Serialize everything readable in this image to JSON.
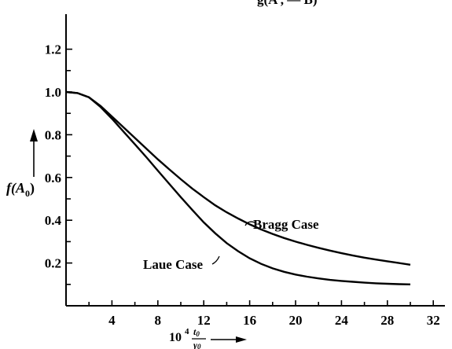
{
  "chart_data": {
    "type": "line",
    "title_fragment": "g(A , — B)",
    "xlabel": {
      "prefix": "10",
      "superscript": "4",
      "numerator": "t",
      "numerator_sub": "0",
      "denominator": "γ",
      "denominator_sub": "0"
    },
    "ylabel": {
      "main": "f(A",
      "sub": "0",
      "close": ")"
    },
    "xlim": [
      0,
      34
    ],
    "ylim": [
      0,
      1.3
    ],
    "x_ticks": [
      4,
      8,
      12,
      16,
      20,
      24,
      28,
      32
    ],
    "x_tick_labels": [
      "4",
      "8",
      "12",
      "16",
      "20",
      "24",
      "28",
      "32"
    ],
    "x_minor_ticks": [
      2,
      6,
      10,
      14,
      18,
      22,
      26,
      30
    ],
    "y_ticks": [
      0.2,
      0.4,
      0.6,
      0.8,
      1.0,
      1.2
    ],
    "y_tick_labels": [
      "0.2",
      "0.4",
      "0.6",
      "0.8",
      "1.0",
      "1.2"
    ],
    "y_minor_ticks": [
      0.1,
      0.3,
      0.5,
      0.7,
      0.9,
      1.1
    ],
    "series": [
      {
        "name": "Bragg Case",
        "x": [
          0,
          1,
          2,
          3,
          4,
          5,
          6,
          7,
          8,
          9,
          10,
          11,
          12,
          13,
          14,
          15,
          16,
          17,
          18,
          19,
          20,
          21,
          22,
          23,
          24,
          25,
          26,
          27,
          28,
          29,
          30
        ],
        "y": [
          1.0,
          0.995,
          0.975,
          0.935,
          0.885,
          0.835,
          0.785,
          0.735,
          0.685,
          0.638,
          0.592,
          0.548,
          0.508,
          0.47,
          0.437,
          0.408,
          0.381,
          0.357,
          0.336,
          0.317,
          0.3,
          0.285,
          0.271,
          0.258,
          0.246,
          0.235,
          0.225,
          0.216,
          0.208,
          0.2,
          0.192
        ]
      },
      {
        "name": "Laue Case",
        "x": [
          0,
          1,
          2,
          3,
          4,
          5,
          6,
          7,
          8,
          9,
          10,
          11,
          12,
          13,
          14,
          15,
          16,
          17,
          18,
          19,
          20,
          21,
          22,
          23,
          24,
          25,
          26,
          27,
          28,
          29,
          30
        ],
        "y": [
          1.0,
          0.995,
          0.975,
          0.93,
          0.875,
          0.815,
          0.755,
          0.695,
          0.632,
          0.57,
          0.508,
          0.448,
          0.39,
          0.339,
          0.293,
          0.255,
          0.222,
          0.196,
          0.175,
          0.159,
          0.146,
          0.136,
          0.128,
          0.121,
          0.116,
          0.112,
          0.108,
          0.105,
          0.103,
          0.101,
          0.1
        ]
      }
    ]
  }
}
